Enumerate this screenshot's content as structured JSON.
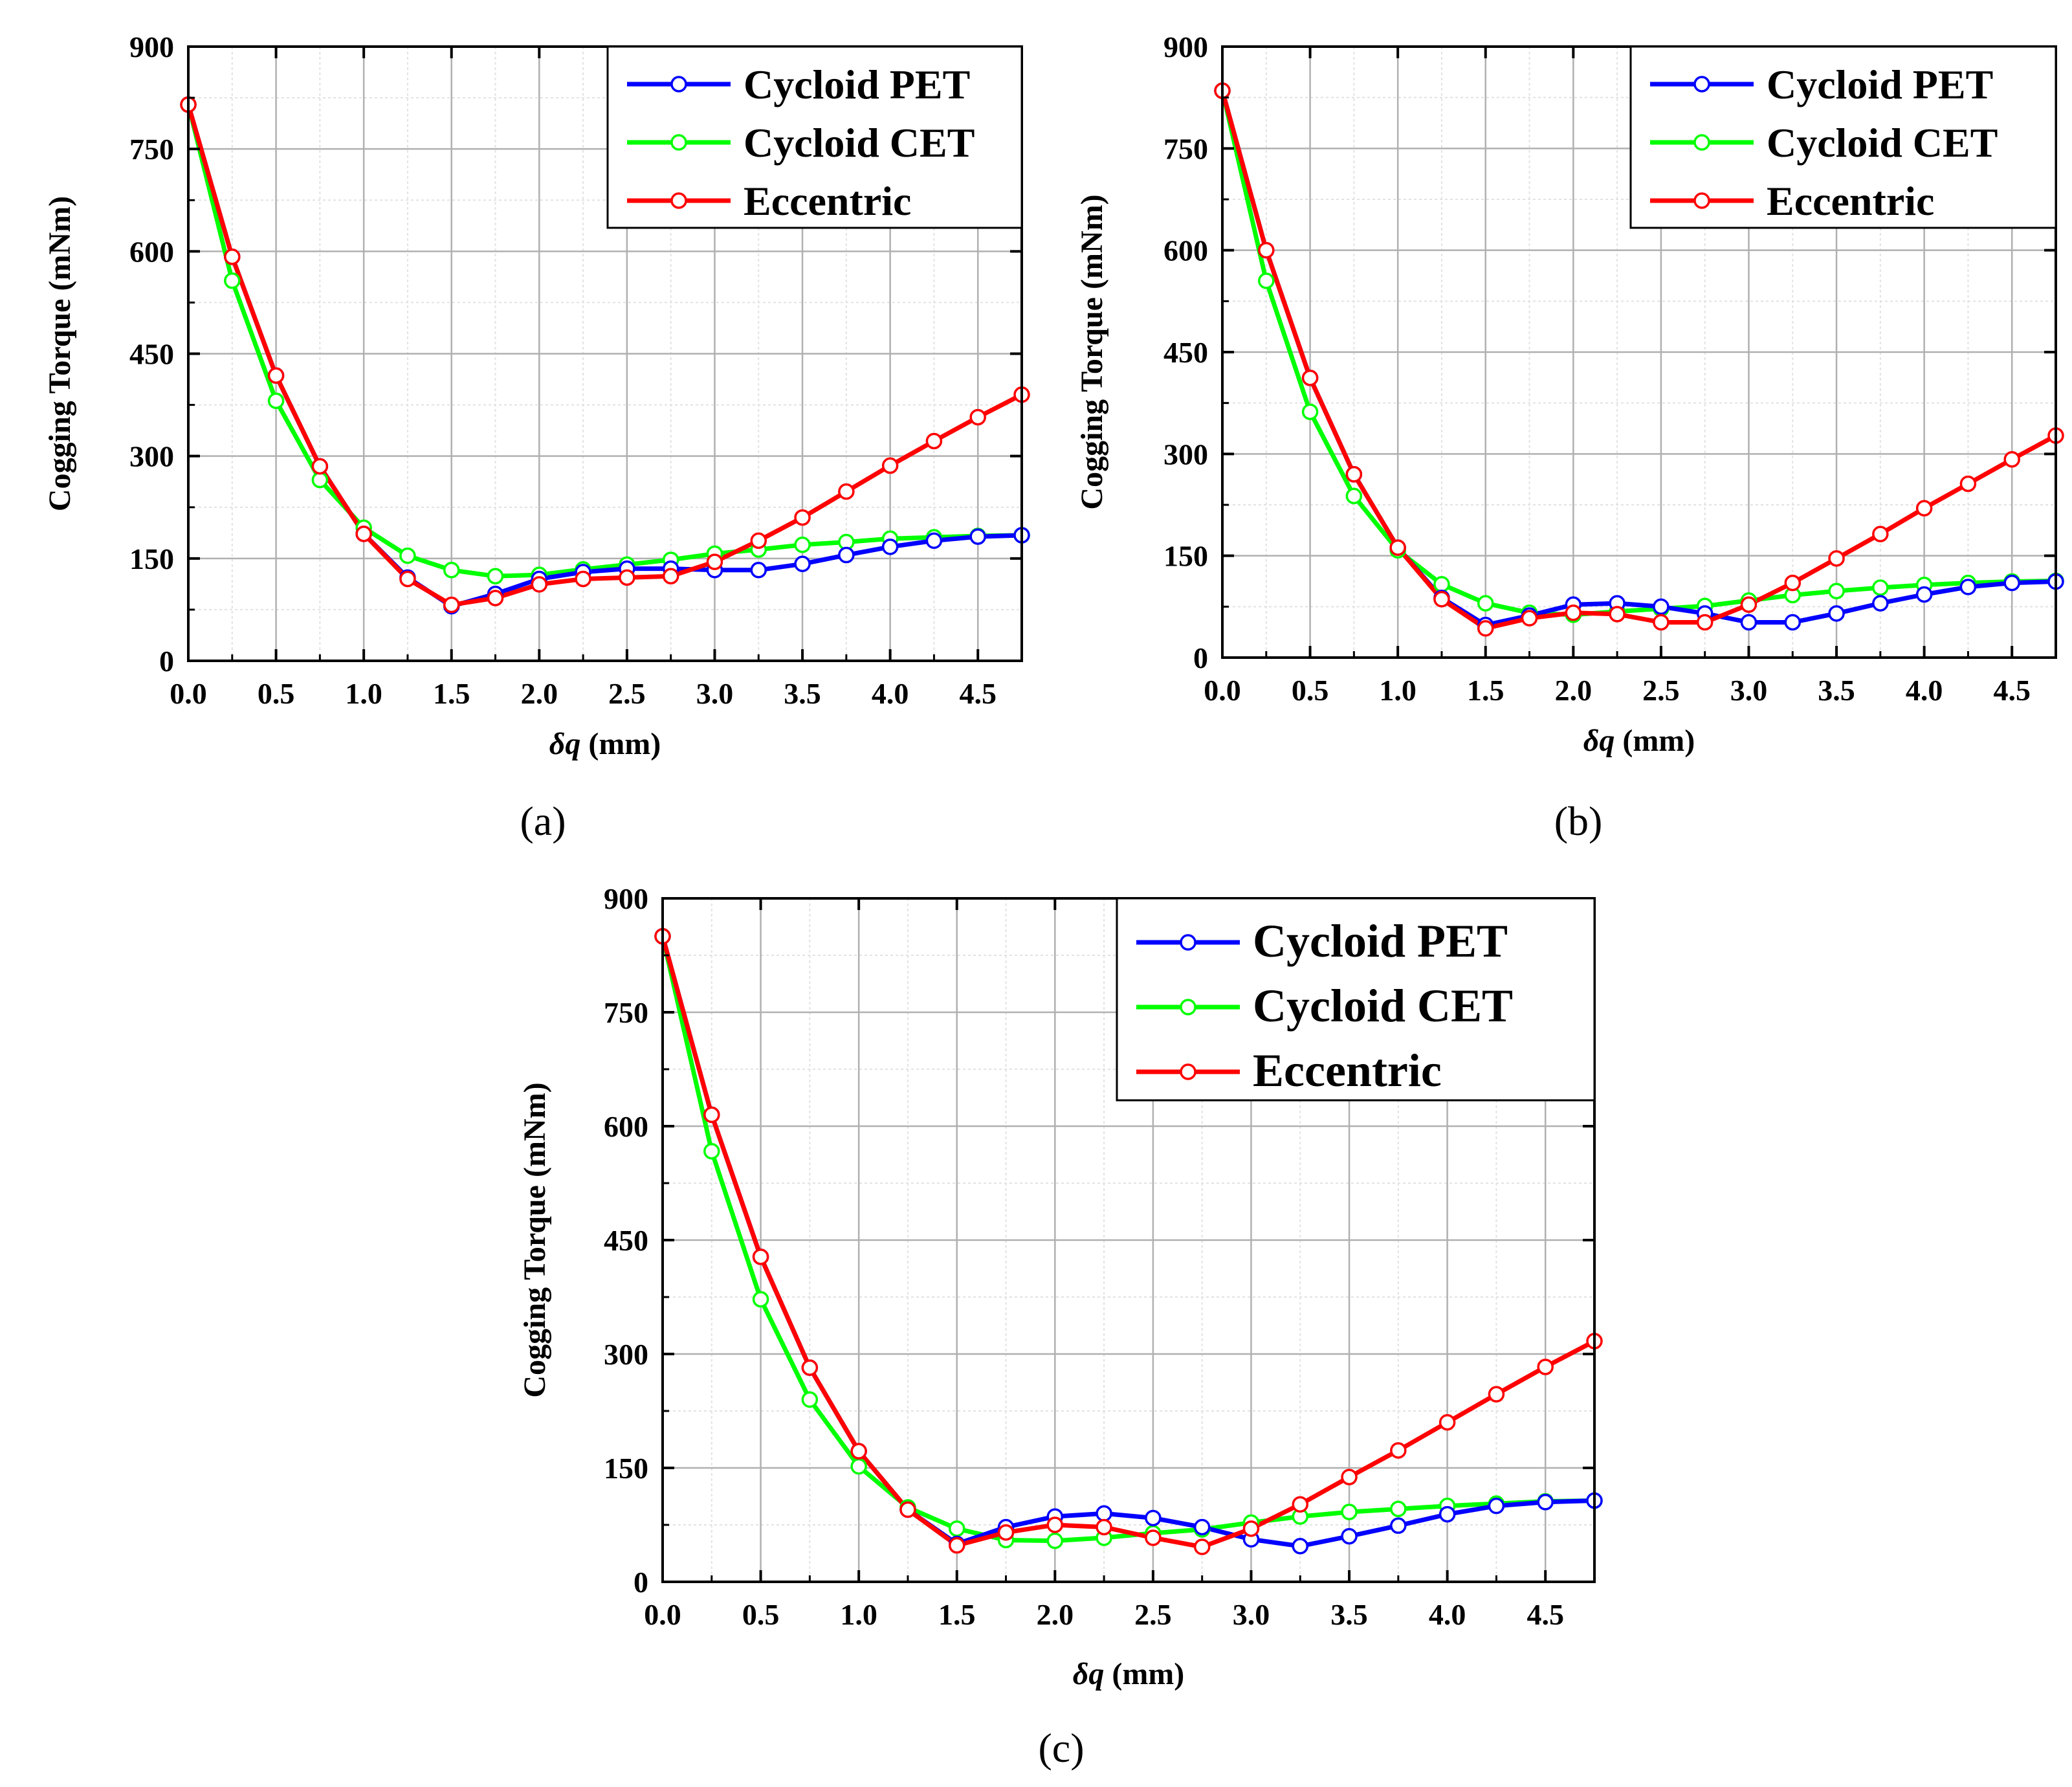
{
  "chart_data": [
    {
      "type": "line",
      "panel_label": "(a)",
      "xlabel_symbol": "δq",
      "xlabel_unit": " (mm)",
      "ylabel": "Cogging Torque (mNm)",
      "xlim": [
        0,
        4.75
      ],
      "ylim": [
        0,
        900
      ],
      "xticks": [
        "0.0",
        "0.5",
        "1.0",
        "1.5",
        "2.0",
        "2.5",
        "3.0",
        "3.5",
        "4.0",
        "4.5"
      ],
      "yticks": [
        "0",
        "150",
        "300",
        "450",
        "600",
        "750",
        "900"
      ],
      "grid": true,
      "legend_position": "top-right",
      "x": [
        0,
        0.25,
        0.5,
        0.75,
        1.0,
        1.25,
        1.5,
        1.75,
        2.0,
        2.25,
        2.5,
        2.75,
        3.0,
        3.25,
        3.5,
        3.75,
        4.0,
        4.25,
        4.5,
        4.75
      ],
      "series": [
        {
          "name": "Cycloid PET",
          "color": "#0000ff",
          "values": [
            815,
            592,
            418,
            285,
            186,
            122,
            80,
            98,
            120,
            130,
            135,
            135,
            133,
            133,
            142,
            155,
            167,
            176,
            182,
            184
          ]
        },
        {
          "name": "Cycloid CET",
          "color": "#00ff00",
          "values": [
            815,
            557,
            381,
            265,
            195,
            154,
            133,
            124,
            126,
            134,
            141,
            148,
            157,
            163,
            170,
            174,
            179,
            181,
            183,
            184
          ]
        },
        {
          "name": "Eccentric",
          "color": "#ff0000",
          "values": [
            815,
            592,
            418,
            285,
            186,
            120,
            82,
            92,
            112,
            120,
            122,
            124,
            145,
            176,
            210,
            248,
            286,
            322,
            357,
            390
          ]
        }
      ]
    },
    {
      "type": "line",
      "panel_label": "(b)",
      "xlabel_symbol": "δq",
      "xlabel_unit": " (mm)",
      "ylabel": "Cogging Torque (mNm)",
      "xlim": [
        0,
        4.75
      ],
      "ylim": [
        0,
        900
      ],
      "xticks": [
        "0.0",
        "0.5",
        "1.0",
        "1.5",
        "2.0",
        "2.5",
        "3.0",
        "3.5",
        "4.0",
        "4.5"
      ],
      "yticks": [
        "0",
        "150",
        "300",
        "450",
        "600",
        "750",
        "900"
      ],
      "grid": true,
      "legend_position": "top-right",
      "x": [
        0,
        0.25,
        0.5,
        0.75,
        1.0,
        1.25,
        1.5,
        1.75,
        2.0,
        2.25,
        2.5,
        2.75,
        3.0,
        3.25,
        3.5,
        3.75,
        4.0,
        4.25,
        4.5,
        4.75
      ],
      "series": [
        {
          "name": "Cycloid PET",
          "color": "#0000ff",
          "values": [
            835,
            600,
            412,
            270,
            162,
            88,
            48,
            62,
            78,
            80,
            75,
            65,
            52,
            52,
            65,
            80,
            93,
            104,
            110,
            112
          ]
        },
        {
          "name": "Cycloid CET",
          "color": "#00ff00",
          "values": [
            835,
            555,
            362,
            238,
            158,
            108,
            80,
            66,
            63,
            68,
            72,
            76,
            84,
            92,
            98,
            103,
            107,
            110,
            112,
            113
          ]
        },
        {
          "name": "Eccentric",
          "color": "#ff0000",
          "values": [
            835,
            600,
            412,
            270,
            162,
            86,
            43,
            58,
            66,
            64,
            52,
            52,
            78,
            110,
            146,
            182,
            220,
            256,
            292,
            327
          ]
        }
      ]
    },
    {
      "type": "line",
      "panel_label": "(c)",
      "xlabel_symbol": "δq",
      "xlabel_unit": " (mm)",
      "ylabel": "Cogging Torque (mNm)",
      "xlim": [
        0,
        4.75
      ],
      "ylim": [
        0,
        900
      ],
      "xticks": [
        "0.0",
        "0.5",
        "1.0",
        "1.5",
        "2.0",
        "2.5",
        "3.0",
        "3.5",
        "4.0",
        "4.5"
      ],
      "yticks": [
        "0",
        "150",
        "300",
        "450",
        "600",
        "750",
        "900"
      ],
      "grid": true,
      "legend_position": "top-right",
      "x": [
        0,
        0.25,
        0.5,
        0.75,
        1.0,
        1.25,
        1.5,
        1.75,
        2.0,
        2.25,
        2.5,
        2.75,
        3.0,
        3.25,
        3.5,
        3.75,
        4.0,
        4.25,
        4.5,
        4.75
      ],
      "series": [
        {
          "name": "Cycloid PET",
          "color": "#0000ff",
          "values": [
            850,
            615,
            428,
            282,
            172,
            95,
            50,
            72,
            86,
            90,
            84,
            72,
            56,
            47,
            60,
            74,
            89,
            100,
            105,
            107
          ]
        },
        {
          "name": "Cycloid CET",
          "color": "#00ff00",
          "values": [
            850,
            567,
            372,
            240,
            152,
            98,
            70,
            55,
            54,
            58,
            64,
            69,
            78,
            86,
            92,
            96,
            100,
            103,
            106,
            107
          ]
        },
        {
          "name": "Eccentric",
          "color": "#ff0000",
          "values": [
            850,
            615,
            428,
            282,
            172,
            95,
            48,
            65,
            75,
            72,
            58,
            46,
            70,
            102,
            138,
            173,
            210,
            247,
            283,
            317
          ]
        }
      ]
    }
  ]
}
